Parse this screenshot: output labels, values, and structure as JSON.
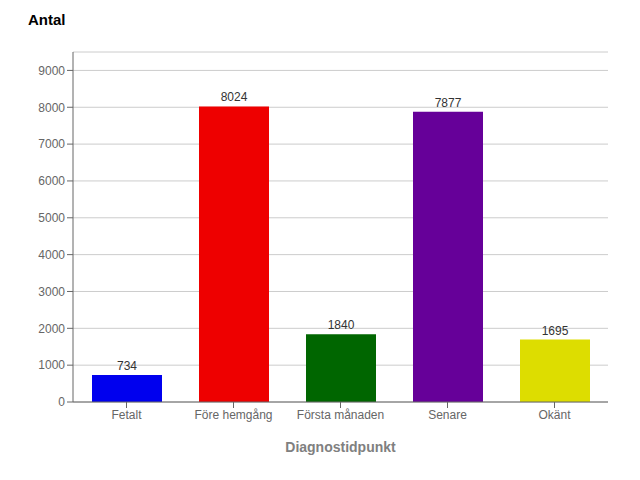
{
  "chart_data": {
    "type": "bar",
    "categories": [
      "Fetalt",
      "Före hemgång",
      "Första månaden",
      "Senare",
      "Okänt"
    ],
    "values": [
      734,
      8024,
      1840,
      7877,
      1695
    ],
    "colors": [
      "#0000ee",
      "#ee0000",
      "#006600",
      "#660099",
      "#dddd00"
    ],
    "xlabel": "Diagnostidpunkt",
    "ylabel": "Antal",
    "ylim": [
      0,
      9500
    ],
    "yticks": [
      0,
      1000,
      2000,
      3000,
      4000,
      5000,
      6000,
      7000,
      8000,
      9000
    ],
    "grid": true,
    "data_labels": true
  }
}
